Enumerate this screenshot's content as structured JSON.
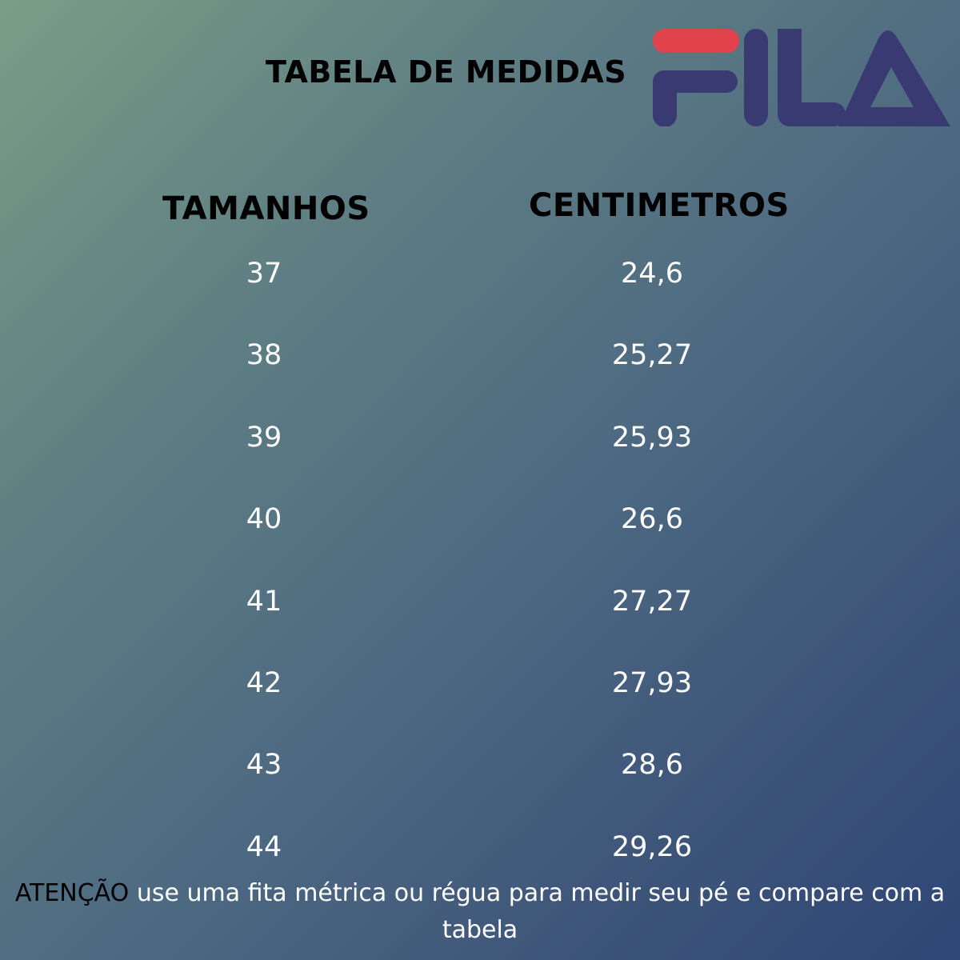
{
  "title": "TABELA DE MEDIDAS",
  "logo": {
    "text": "FILA",
    "colors": {
      "red": "#e2424b",
      "navy": "#3a3a72"
    }
  },
  "table": {
    "headers": {
      "sizes": "TAMANHOS",
      "centimeters": "CENTIMETROS"
    },
    "rows": [
      {
        "size": "37",
        "cm": "24,6"
      },
      {
        "size": "38",
        "cm": "25,27"
      },
      {
        "size": "39",
        "cm": "25,93"
      },
      {
        "size": "40",
        "cm": "26,6"
      },
      {
        "size": "41",
        "cm": "27,27"
      },
      {
        "size": "42",
        "cm": "27,93"
      },
      {
        "size": "43",
        "cm": "28,6"
      },
      {
        "size": "44",
        "cm": "29,26"
      }
    ]
  },
  "notice": {
    "label": "ATENÇÃO",
    "text": " use uma fita métrica ou régua para medir seu pé e compare com a tabela"
  }
}
